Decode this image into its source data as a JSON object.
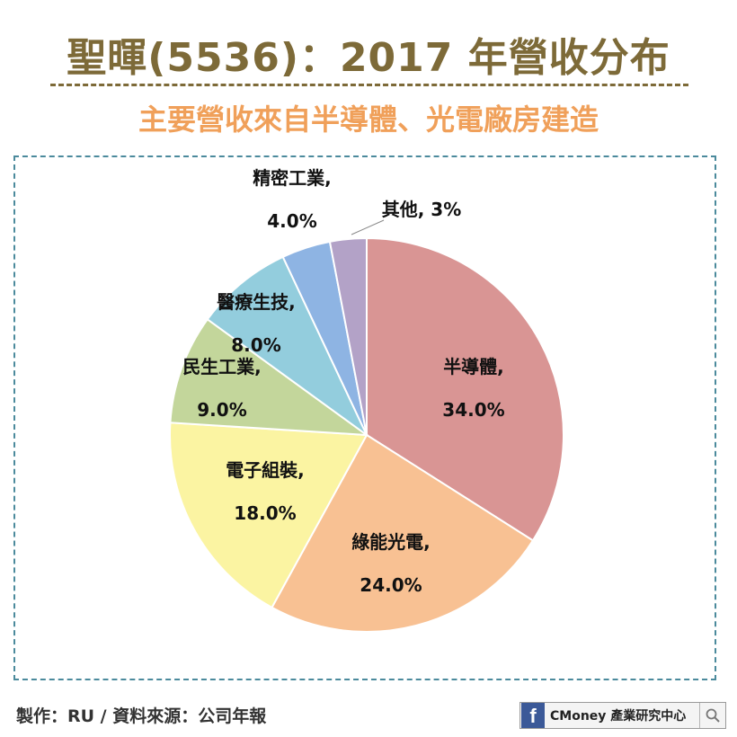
{
  "header": {
    "title": "聖暉(5536)：2017 年營收分布",
    "subtitle": "主要營收來自半導體、光電廠房建造"
  },
  "footer": {
    "credit": "製作：RU  / 資料來源：公司年報",
    "brand": "CMoney 產業研究中心",
    "brand_icon": "facebook-icon",
    "search_icon": "search-icon"
  },
  "colors": {
    "title": "#7d6a38",
    "subtitle": "#f0a05a",
    "box_border": "#4b8a9c"
  },
  "chart_data": {
    "type": "pie",
    "start": "12 o'clock, clockwise",
    "slices": [
      {
        "label": "半導體,",
        "pct_text": "34.0%",
        "value": 34.0,
        "color": "#d99594"
      },
      {
        "label": "綠能光電,",
        "pct_text": "24.0%",
        "value": 24.0,
        "color": "#f8c193"
      },
      {
        "label": "電子組裝,",
        "pct_text": "18.0%",
        "value": 18.0,
        "color": "#fbf4a2"
      },
      {
        "label": "民生工業,",
        "pct_text": "9.0%",
        "value": 9.0,
        "color": "#c3d69b"
      },
      {
        "label": "醫療生技,",
        "pct_text": "8.0%",
        "value": 8.0,
        "color": "#93cddd"
      },
      {
        "label": "精密工業,",
        "pct_text": "4.0%",
        "value": 4.0,
        "color": "#8eb4e3"
      },
      {
        "label": "其他, 3%",
        "pct_text": "",
        "value": 3.0,
        "color": "#b3a2c7"
      }
    ]
  }
}
